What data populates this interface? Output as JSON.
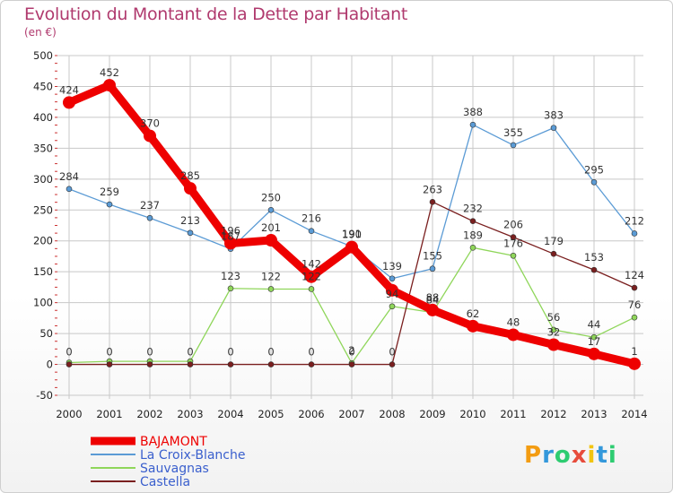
{
  "title": "Evolution du Montant de la Dette par Habitant",
  "subtitle": "(en €)",
  "logo": "Proxiti",
  "colors": {
    "title": "#b03a6e",
    "grid": "#c8c8c8",
    "axis_red": "#cc3333",
    "BAJAMONT": "#ee0000",
    "La Croix-Blanche": "#5b9bd5",
    "Sauvagnas": "#8fd65a",
    "Castella": "#7a1f1f"
  },
  "chart_data": {
    "type": "line",
    "title": "Evolution du Montant de la Dette par Habitant",
    "subtitle": "(en €)",
    "xlabel": "",
    "ylabel": "",
    "ylim": [
      -50,
      500
    ],
    "yticks": [
      -50,
      0,
      50,
      100,
      150,
      200,
      250,
      300,
      350,
      400,
      450,
      500
    ],
    "grid": true,
    "legend": "bottom-left",
    "x": [
      "2000",
      "2001",
      "2002",
      "2003",
      "2004",
      "2005",
      "2006",
      "2007",
      "2008",
      "2009",
      "2010",
      "2011",
      "2012",
      "2013",
      "2014"
    ],
    "series": [
      {
        "name": "BAJAMONT",
        "color": "#ee0000",
        "bold": true,
        "values": [
          424,
          452,
          370,
          285,
          196,
          201,
          142,
          190,
          120,
          88,
          62,
          48,
          32,
          17,
          1
        ],
        "labels": [
          "424",
          "452",
          "370",
          "285",
          "196",
          "201",
          "142",
          "190",
          "",
          "88",
          "62",
          "48",
          "32",
          "17",
          "1"
        ]
      },
      {
        "name": "La Croix-Blanche",
        "color": "#5b9bd5",
        "values": [
          284,
          259,
          237,
          213,
          187,
          250,
          216,
          191,
          139,
          155,
          388,
          355,
          383,
          295,
          212
        ],
        "labels": [
          "284",
          "259",
          "237",
          "213",
          "187",
          "250",
          "216",
          "191",
          "139",
          "155",
          "388",
          "355",
          "383",
          "295",
          "212"
        ]
      },
      {
        "name": "Sauvagnas",
        "color": "#8fd65a",
        "values": [
          3,
          5,
          5,
          5,
          123,
          122,
          122,
          2,
          94,
          84,
          189,
          176,
          56,
          44,
          76
        ],
        "labels": [
          "",
          "",
          "",
          "",
          "123",
          "122",
          "122",
          "2",
          "94",
          "84",
          "189",
          "176",
          "56",
          "44",
          "76"
        ]
      },
      {
        "name": "Castella",
        "color": "#7a1f1f",
        "values": [
          0,
          0,
          0,
          0,
          0,
          0,
          0,
          0,
          0,
          263,
          232,
          206,
          179,
          153,
          124
        ],
        "labels": [
          "0",
          "0",
          "0",
          "0",
          "0",
          "0",
          "0",
          "0",
          "0",
          "263",
          "232",
          "206",
          "179",
          "153",
          "124"
        ]
      }
    ]
  }
}
